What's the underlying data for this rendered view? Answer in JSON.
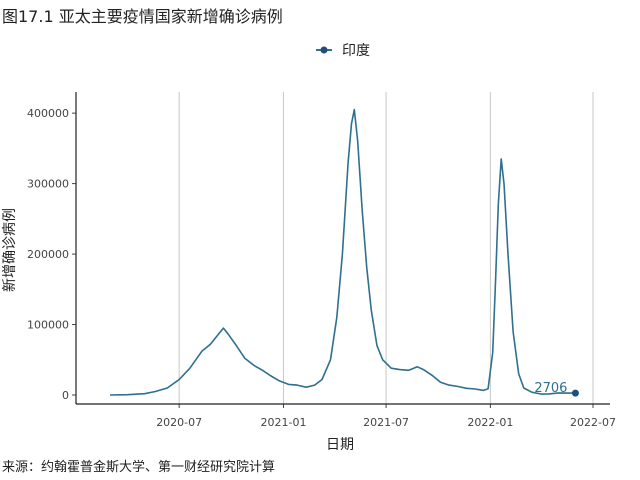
{
  "title": "图17.1 亚太主要疫情国家新增确诊病例",
  "source": "来源：约翰霍普金斯大学、第一财经研究院计算",
  "chart_data": {
    "type": "line",
    "xlabel": "日期",
    "ylabel": "新增确诊病例",
    "x_ticks": [
      "2020-07",
      "2021-01",
      "2021-07",
      "2022-01",
      "2022-07"
    ],
    "y_ticks": [
      "0",
      "100000",
      "200000",
      "300000",
      "400000"
    ],
    "ylim": [
      0,
      430000
    ],
    "xlim": [
      "2020-01-01",
      "2022-07-31"
    ],
    "grid": "vertical",
    "legend": "top",
    "colors": {
      "series": "#2f6f8f",
      "marker": "#1f4f7a"
    },
    "end_label": "2706",
    "series": [
      {
        "name": "印度",
        "x": [
          "2020-03-01",
          "2020-04-01",
          "2020-05-01",
          "2020-05-20",
          "2020-06-10",
          "2020-07-01",
          "2020-07-20",
          "2020-08-10",
          "2020-08-25",
          "2020-09-10",
          "2020-09-17",
          "2020-09-25",
          "2020-10-10",
          "2020-10-25",
          "2020-11-10",
          "2020-11-25",
          "2020-12-10",
          "2020-12-25",
          "2021-01-10",
          "2021-01-25",
          "2021-02-10",
          "2021-02-25",
          "2021-03-10",
          "2021-03-25",
          "2021-04-05",
          "2021-04-15",
          "2021-04-25",
          "2021-05-01",
          "2021-05-06",
          "2021-05-12",
          "2021-05-20",
          "2021-05-28",
          "2021-06-05",
          "2021-06-15",
          "2021-06-25",
          "2021-07-10",
          "2021-07-25",
          "2021-08-10",
          "2021-08-25",
          "2021-09-05",
          "2021-09-20",
          "2021-10-05",
          "2021-10-20",
          "2021-11-05",
          "2021-11-20",
          "2021-12-05",
          "2021-12-20",
          "2021-12-28",
          "2022-01-05",
          "2022-01-10",
          "2022-01-15",
          "2022-01-20",
          "2022-01-25",
          "2022-02-01",
          "2022-02-10",
          "2022-02-20",
          "2022-03-01",
          "2022-03-15",
          "2022-04-01",
          "2022-04-15",
          "2022-05-01",
          "2022-05-15",
          "2022-05-31"
        ],
        "values": [
          50,
          400,
          1800,
          5000,
          10000,
          22000,
          38000,
          62000,
          72000,
          88000,
          95000,
          87000,
          70000,
          52000,
          42000,
          35000,
          27000,
          20000,
          15000,
          14000,
          11000,
          14000,
          22000,
          50000,
          110000,
          200000,
          330000,
          385000,
          405000,
          360000,
          260000,
          180000,
          120000,
          70000,
          50000,
          38000,
          36000,
          35000,
          40000,
          36000,
          28000,
          18000,
          14000,
          12000,
          9500,
          8500,
          6500,
          9000,
          60000,
          160000,
          270000,
          335000,
          300000,
          200000,
          90000,
          30000,
          10000,
          4000,
          1300,
          1600,
          3000,
          2700,
          2706
        ]
      }
    ]
  }
}
